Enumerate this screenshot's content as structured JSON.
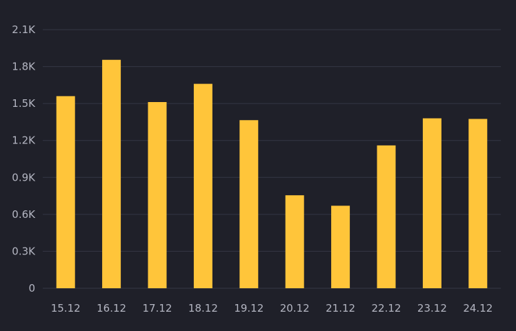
{
  "chart_data": {
    "type": "bar",
    "categories": [
      "15.12",
      "16.12",
      "17.12",
      "18.12",
      "19.12",
      "20.12",
      "21.12",
      "22.12",
      "23.12",
      "24.12"
    ],
    "values": [
      1560,
      1855,
      1512,
      1660,
      1365,
      755,
      670,
      1160,
      1380,
      1375
    ],
    "ylim": [
      0,
      2100
    ],
    "yticks": [
      0,
      300,
      600,
      900,
      1200,
      1500,
      1800,
      2100
    ],
    "ytick_labels": [
      "0",
      "0.3K",
      "0.6K",
      "0.9K",
      "1.2K",
      "1.5K",
      "1.8K",
      "2.1K"
    ],
    "grid": true,
    "legend": "none"
  },
  "colors": {
    "background": "#1f2029",
    "bar": "#ffc53a",
    "grid": "#353745",
    "tick_label": "#b4b6c2"
  }
}
